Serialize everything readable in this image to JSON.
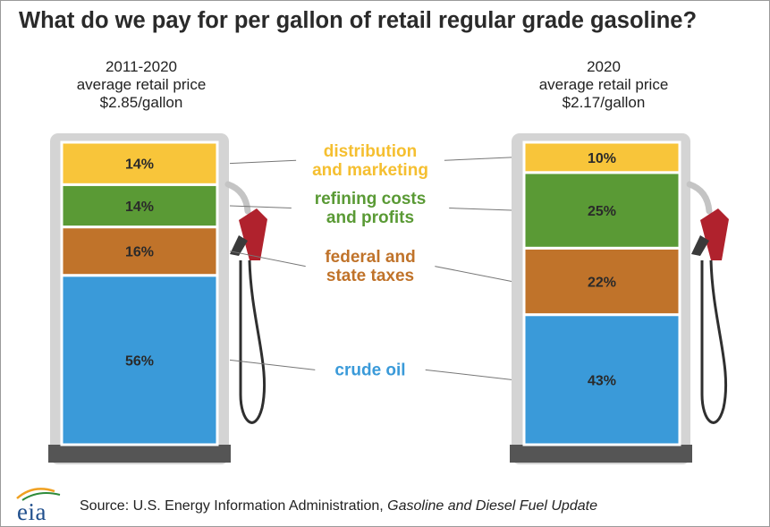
{
  "title": "What do we pay for per gallon of retail regular grade gasoline?",
  "pumps": [
    {
      "line1": "2011-2020",
      "line2": "average retail price",
      "line3": "$2.85/gallon"
    },
    {
      "line1": "2020",
      "line2": "average retail price",
      "line3": "$2.17/gallon"
    }
  ],
  "chart_data": {
    "type": "bar",
    "subtype": "stacked-100",
    "categories": [
      "2011-2020",
      "2020"
    ],
    "series": [
      {
        "name": "crude oil",
        "label_lines": [
          "crude oil"
        ],
        "values": [
          56,
          43
        ],
        "color": "#3a9ad9",
        "label_color": "#3a9ad9"
      },
      {
        "name": "federal and state taxes",
        "label_lines": [
          "federal and",
          "state taxes"
        ],
        "values": [
          16,
          22
        ],
        "color": "#c0732a",
        "label_color": "#c0732a"
      },
      {
        "name": "refining costs and profits",
        "label_lines": [
          "refining costs",
          "and profits"
        ],
        "values": [
          14,
          25
        ],
        "color": "#5a9a35",
        "label_color": "#5a9a35"
      },
      {
        "name": "distribution and marketing",
        "label_lines": [
          "distribution",
          "and marketing"
        ],
        "values": [
          14,
          10
        ],
        "color": "#f8c53a",
        "label_color": "#f5bf30"
      }
    ],
    "value_suffix": "%",
    "ylim": [
      0,
      100
    ]
  },
  "colors": {
    "pump_body": "#d4d4d4",
    "pump_base": "#555555",
    "nozzle": "#b0222d",
    "hose": "#2f2f2f"
  },
  "source": {
    "prefix": "Source: U.S. Energy Information Administration, ",
    "italic": "Gasoline and Diesel Fuel Update"
  },
  "logo": {
    "text": "eia"
  }
}
